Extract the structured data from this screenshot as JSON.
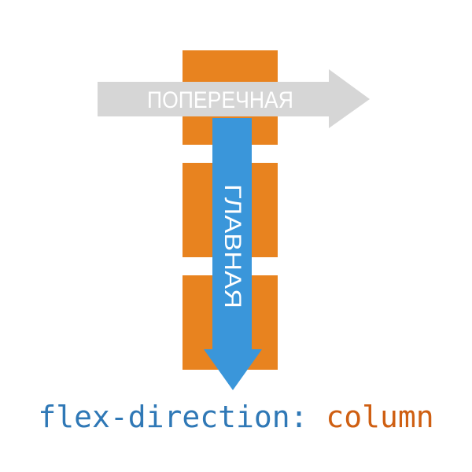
{
  "diagram": {
    "cross_axis_label": "ПОПЕРЕЧНАЯ",
    "main_axis_label": "ГЛАВНАЯ",
    "items_count": 3
  },
  "caption": {
    "property": "flex-direction:",
    "value": "column"
  },
  "colors": {
    "item": "#e8831f",
    "cross_arrow": "#d6d6d6",
    "main_arrow": "#3a96da",
    "property_text": "#2f78b6",
    "value_text": "#cf5f12",
    "arrow_text": "#ffffff"
  }
}
